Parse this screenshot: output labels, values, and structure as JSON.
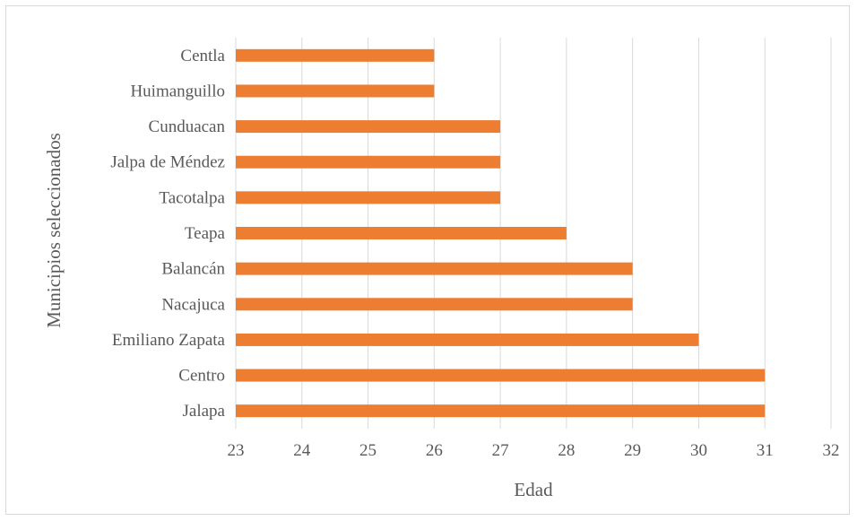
{
  "chart_data": {
    "type": "bar",
    "orientation": "horizontal",
    "categories": [
      "Jalapa",
      "Centro",
      "Emiliano Zapata",
      "Nacajuca",
      "Balancán",
      "Teapa",
      "Tacotalpa",
      "Jalpa de Méndez",
      "Cunduacan",
      "Huimanguillo",
      "Centla"
    ],
    "series": [
      {
        "values": [
          31,
          31,
          30,
          29,
          29,
          28,
          27,
          27,
          27,
          26,
          26
        ]
      }
    ],
    "xlabel": "Edad",
    "ylabel": "Municipios seleccionados",
    "xlim": [
      23,
      32
    ],
    "xticks": [
      "23",
      "24",
      "25",
      "26",
      "27",
      "28",
      "29",
      "30",
      "31",
      "32"
    ],
    "grid": "vertical",
    "legend": "none",
    "colors": {
      "bar": "#ED7D31",
      "grid": "#D9D9D9",
      "text": "#595959"
    }
  }
}
